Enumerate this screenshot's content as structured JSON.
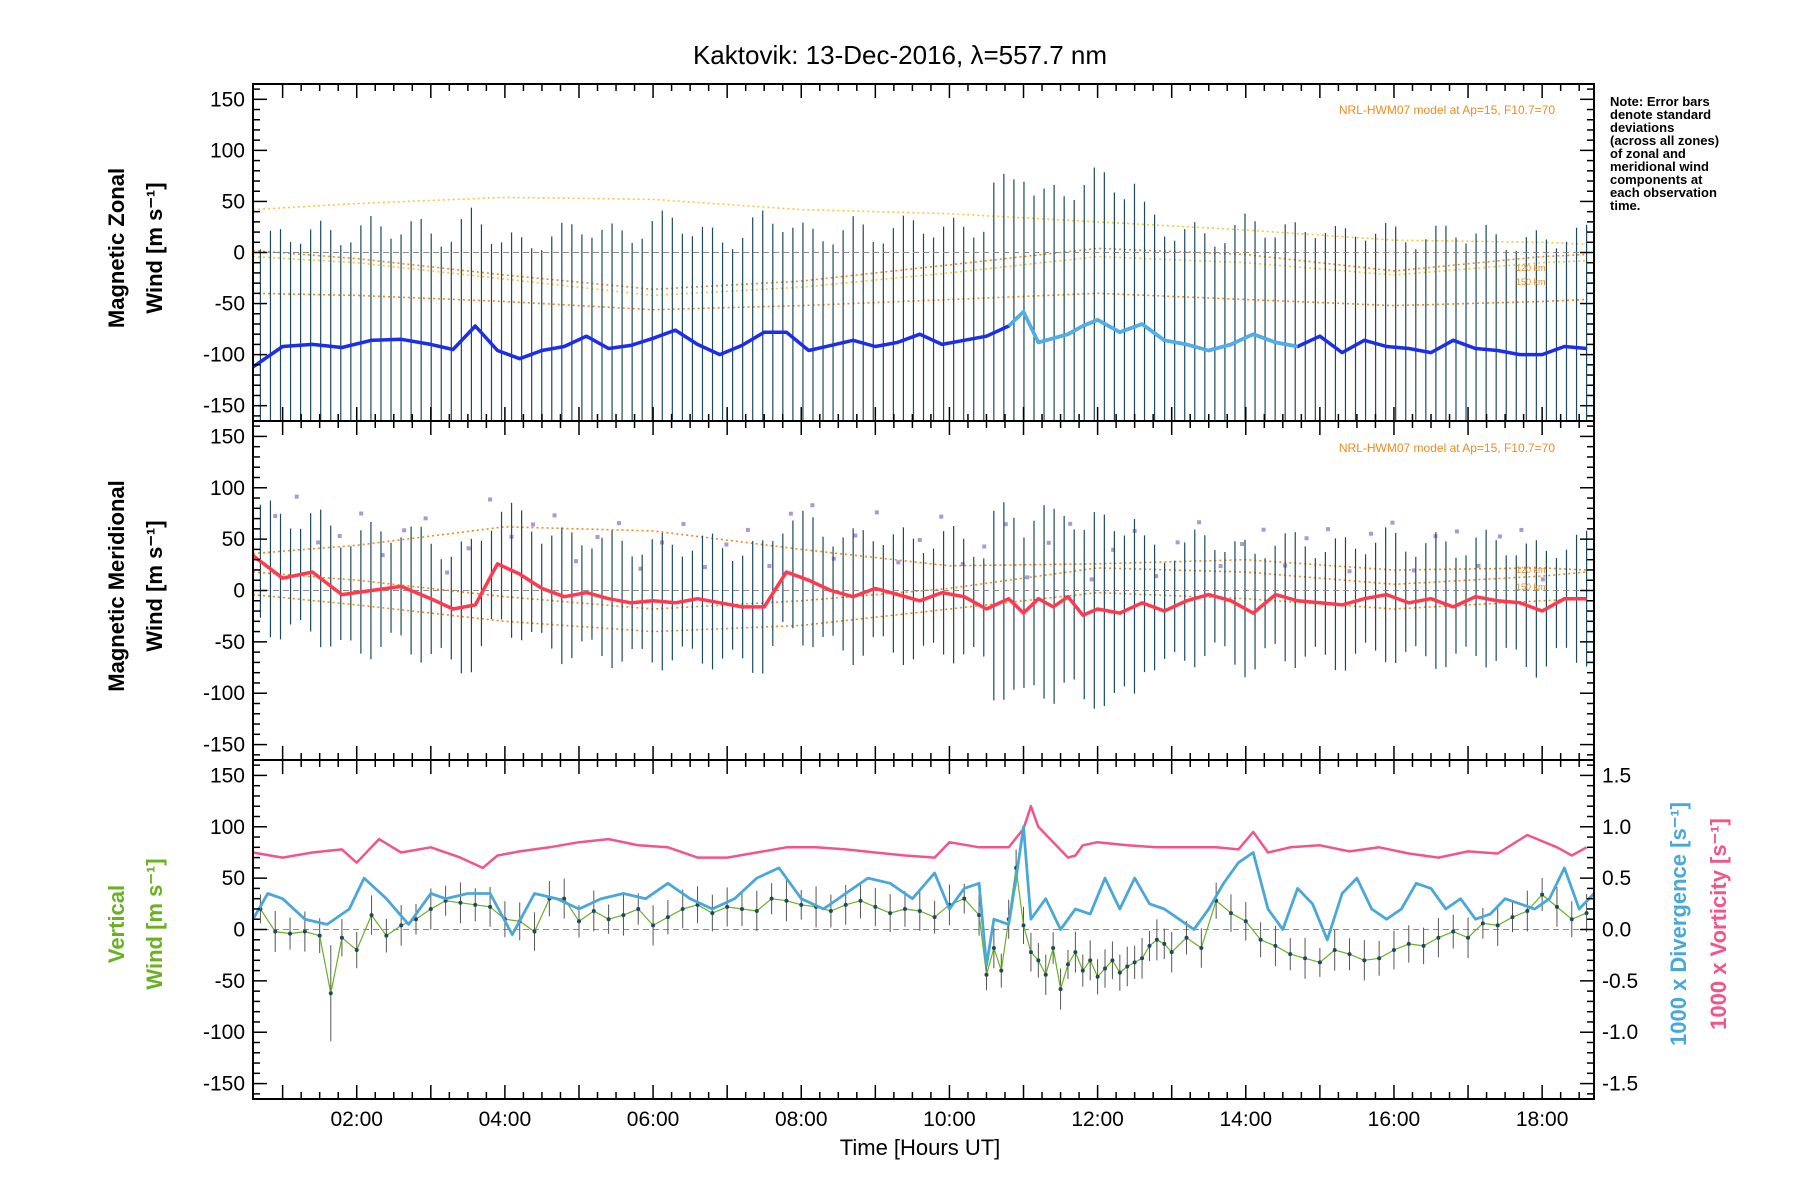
{
  "chart_data": [
    {
      "type": "line",
      "panel": "zonal",
      "title": "Kaktovik: 13-Dec-2016, λ=557.7 nm",
      "ylabel_line1": "Magnetic Zonal",
      "ylabel_line2": "Wind [m s⁻¹]",
      "ylim": [
        -165,
        165
      ],
      "yticks": [
        150,
        100,
        50,
        0,
        -50,
        -100,
        -150
      ],
      "xlim": [
        0.6,
        18.7
      ],
      "model_note": "NRL-HWM07 model at Ap=15, F10.7=70",
      "alt_labels": [
        "120 km",
        "150 km"
      ],
      "colors": {
        "mean": "#1c2ee8",
        "mean_alt": "#4fb0e8",
        "errorbar": "#1d4a60",
        "model": "#f28a1c",
        "model2": "#f7c93a"
      },
      "mean_wind": {
        "x": [
          0.6,
          1.0,
          1.4,
          1.8,
          2.2,
          2.6,
          3.0,
          3.3,
          3.6,
          3.9,
          4.2,
          4.5,
          4.8,
          5.1,
          5.4,
          5.7,
          6.0,
          6.3,
          6.6,
          6.9,
          7.2,
          7.5,
          7.8,
          8.1,
          8.4,
          8.7,
          9.0,
          9.3,
          9.6,
          9.9,
          10.2,
          10.5,
          10.8,
          11.0,
          11.2,
          11.4,
          11.6,
          11.8,
          12.0,
          12.3,
          12.6,
          12.9,
          13.2,
          13.5,
          13.8,
          14.1,
          14.4,
          14.7,
          15.0,
          15.3,
          15.6,
          15.9,
          16.2,
          16.5,
          16.8,
          17.1,
          17.4,
          17.7,
          18.0,
          18.3,
          18.6
        ],
        "y": [
          -112,
          -92,
          -90,
          -93,
          -86,
          -85,
          -90,
          -95,
          -72,
          -96,
          -104,
          -96,
          -92,
          -82,
          -94,
          -91,
          -84,
          -76,
          -90,
          -100,
          -91,
          -78,
          -78,
          -96,
          -91,
          -86,
          -92,
          -88,
          -80,
          -90,
          -86,
          -82,
          -72,
          -58,
          -88,
          -84,
          -80,
          -72,
          -66,
          -78,
          -70,
          -86,
          -90,
          -96,
          -90,
          -80,
          -88,
          -92,
          -82,
          -98,
          -86,
          -92,
          -94,
          -98,
          -86,
          -94,
          -96,
          -100,
          -100,
          -92,
          -94
        ]
      },
      "model_lines": [
        {
          "name": "120 km",
          "x": [
            0.6,
            2,
            4,
            6,
            8,
            10,
            12,
            14,
            16,
            18,
            18.6
          ],
          "y": [
            42,
            48,
            54,
            52,
            42,
            38,
            30,
            22,
            12,
            10,
            8
          ]
        },
        {
          "name": "120 km",
          "x": [
            0.6,
            2,
            4,
            6,
            8,
            10,
            12,
            14,
            16,
            18,
            18.6
          ],
          "y": [
            2,
            -6,
            -22,
            -36,
            -28,
            -12,
            4,
            -2,
            -18,
            -4,
            -2
          ]
        },
        {
          "name": "150 km",
          "x": [
            0.6,
            2,
            4,
            6,
            8,
            10,
            12,
            14,
            16,
            18,
            18.6
          ],
          "y": [
            -4,
            -10,
            -26,
            -42,
            -34,
            -20,
            -4,
            -10,
            -22,
            -10,
            -8
          ]
        },
        {
          "name": "150 km",
          "x": [
            0.6,
            2,
            4,
            6,
            8,
            10,
            12,
            14,
            16,
            18,
            18.6
          ],
          "y": [
            -40,
            -42,
            -48,
            -56,
            -52,
            -46,
            -40,
            -46,
            -52,
            -48,
            -46
          ]
        }
      ]
    },
    {
      "type": "line",
      "panel": "meridional",
      "ylabel_line1": "Magnetic Meridional",
      "ylabel_line2": "Wind [m s⁻¹]",
      "ylim": [
        -165,
        165
      ],
      "yticks": [
        150,
        100,
        50,
        0,
        -50,
        -100,
        -150
      ],
      "xlim": [
        0.6,
        18.7
      ],
      "model_note": "NRL-HWM07 model at Ap=15, F10.7=70",
      "alt_labels": [
        "120 km",
        "150 km"
      ],
      "colors": {
        "mean": "#ff3a4e",
        "errorbar": "#1d4a60",
        "model": "#f28a1c",
        "scatter": "#a89ad6"
      },
      "mean_wind": {
        "x": [
          0.6,
          1.0,
          1.4,
          1.8,
          2.2,
          2.6,
          3.0,
          3.3,
          3.6,
          3.9,
          4.2,
          4.5,
          4.8,
          5.1,
          5.4,
          5.7,
          6.0,
          6.3,
          6.6,
          6.9,
          7.2,
          7.5,
          7.8,
          8.1,
          8.4,
          8.7,
          9.0,
          9.3,
          9.6,
          9.9,
          10.2,
          10.5,
          10.8,
          11.0,
          11.2,
          11.4,
          11.6,
          11.8,
          12.0,
          12.3,
          12.6,
          12.9,
          13.2,
          13.5,
          13.8,
          14.1,
          14.4,
          14.7,
          15.0,
          15.3,
          15.6,
          15.9,
          16.2,
          16.5,
          16.8,
          17.1,
          17.4,
          17.7,
          18.0,
          18.3,
          18.6
        ],
        "y": [
          34,
          12,
          18,
          -4,
          0,
          4,
          -8,
          -18,
          -14,
          26,
          16,
          2,
          -6,
          -2,
          -8,
          -12,
          -10,
          -12,
          -8,
          -12,
          -16,
          -16,
          18,
          10,
          0,
          -6,
          2,
          -4,
          -10,
          -2,
          -6,
          -18,
          -8,
          -22,
          -8,
          -16,
          -6,
          -24,
          -18,
          -22,
          -12,
          -20,
          -10,
          -4,
          -10,
          -22,
          -4,
          -10,
          -12,
          -14,
          -8,
          -4,
          -12,
          -8,
          -16,
          -6,
          -10,
          -12,
          -20,
          -8,
          -8
        ]
      },
      "model_lines": [
        {
          "name": "120 km",
          "x": [
            0.6,
            2,
            4,
            6,
            8,
            10,
            12,
            14,
            16,
            18,
            18.6
          ],
          "y": [
            36,
            44,
            62,
            58,
            40,
            24,
            26,
            30,
            20,
            22,
            20
          ]
        },
        {
          "name": "120 km",
          "x": [
            0.6,
            2,
            4,
            6,
            8,
            10,
            12,
            14,
            16,
            18,
            18.6
          ],
          "y": [
            18,
            10,
            -6,
            -18,
            -10,
            2,
            22,
            18,
            6,
            14,
            18
          ]
        },
        {
          "name": "150 km",
          "x": [
            0.6,
            2,
            4,
            6,
            8,
            10,
            12,
            14,
            16,
            18,
            18.6
          ],
          "y": [
            -4,
            -14,
            -30,
            -40,
            -34,
            -18,
            -2,
            -8,
            -18,
            -10,
            -8
          ]
        }
      ]
    },
    {
      "type": "line",
      "panel": "vertical",
      "ylabel_line1": "Vertical",
      "ylabel_line2": "Wind [m s⁻¹]",
      "ylim": [
        -165,
        165
      ],
      "yticks": [
        150,
        100,
        50,
        0,
        -50,
        -100,
        -150
      ],
      "y2lim": [
        -1.65,
        1.65
      ],
      "y2ticks": [
        "1.5",
        "1.0",
        "0.5",
        "0.0",
        "-0.5",
        "-1.0",
        "-1.5"
      ],
      "y2label_divergence": "1000 x Divergence [s⁻¹]",
      "y2label_vorticity": "1000 x Vorticity [s⁻¹]",
      "xlim": [
        0.6,
        18.7
      ],
      "xticks": [
        "02:00",
        "04:00",
        "06:00",
        "08:00",
        "10:00",
        "12:00",
        "14:00",
        "16:00",
        "18:00"
      ],
      "xlabel": "Time [Hours UT]",
      "colors": {
        "vertical": "#6ab023",
        "divergence": "#4aa8d8",
        "vorticity": "#f2558a",
        "errorbar": "#555555"
      },
      "vertical_wind": {
        "x": [
          0.7,
          0.9,
          1.1,
          1.3,
          1.5,
          1.65,
          1.8,
          2.0,
          2.2,
          2.4,
          2.6,
          2.8,
          3.0,
          3.2,
          3.4,
          3.6,
          3.8,
          4.0,
          4.2,
          4.4,
          4.6,
          4.8,
          5.0,
          5.2,
          5.4,
          5.6,
          5.8,
          6.0,
          6.2,
          6.4,
          6.6,
          6.8,
          7.0,
          7.2,
          7.4,
          7.6,
          7.8,
          8.0,
          8.2,
          8.4,
          8.6,
          8.8,
          9.0,
          9.2,
          9.4,
          9.6,
          9.8,
          10.0,
          10.2,
          10.4,
          10.5,
          10.6,
          10.7,
          10.8,
          10.9,
          11.0,
          11.1,
          11.2,
          11.3,
          11.4,
          11.5,
          11.6,
          11.7,
          11.8,
          11.9,
          12.0,
          12.1,
          12.2,
          12.3,
          12.4,
          12.5,
          12.6,
          12.7,
          12.8,
          12.9,
          13.0,
          13.2,
          13.4,
          13.6,
          13.8,
          14.0,
          14.2,
          14.4,
          14.6,
          14.8,
          15.0,
          15.2,
          15.4,
          15.6,
          15.8,
          16.0,
          16.2,
          16.4,
          16.6,
          16.8,
          17.0,
          17.2,
          17.4,
          17.6,
          17.8,
          18.0,
          18.2,
          18.4,
          18.6
        ],
        "y": [
          20,
          -2,
          -4,
          -2,
          -6,
          -62,
          -8,
          -20,
          14,
          -6,
          4,
          10,
          20,
          28,
          26,
          24,
          22,
          10,
          8,
          -2,
          30,
          30,
          8,
          18,
          10,
          14,
          20,
          4,
          12,
          20,
          24,
          16,
          22,
          20,
          18,
          30,
          28,
          24,
          22,
          18,
          24,
          28,
          22,
          16,
          20,
          18,
          12,
          24,
          30,
          14,
          -44,
          -18,
          -40,
          10,
          60,
          4,
          -22,
          -30,
          -44,
          -18,
          -58,
          -34,
          -22,
          -40,
          -30,
          -46,
          -38,
          -30,
          -42,
          -36,
          -32,
          -28,
          -16,
          -10,
          -14,
          -22,
          -8,
          -18,
          28,
          16,
          8,
          -10,
          -16,
          -24,
          -28,
          -32,
          -20,
          -24,
          -30,
          -28,
          -20,
          -14,
          -16,
          -8,
          -2,
          -8,
          6,
          4,
          12,
          18,
          34,
          22,
          10,
          16
        ]
      },
      "divergence": {
        "x": [
          0.6,
          0.8,
          1.0,
          1.3,
          1.6,
          1.9,
          2.1,
          2.4,
          2.7,
          3.0,
          3.2,
          3.5,
          3.8,
          4.1,
          4.4,
          4.7,
          5.0,
          5.3,
          5.6,
          5.9,
          6.2,
          6.5,
          6.8,
          7.1,
          7.4,
          7.7,
          8.0,
          8.3,
          8.6,
          8.9,
          9.2,
          9.5,
          9.8,
          10.0,
          10.2,
          10.4,
          10.5,
          10.6,
          10.8,
          10.9,
          11.0,
          11.1,
          11.3,
          11.5,
          11.7,
          11.9,
          12.1,
          12.3,
          12.5,
          12.7,
          12.9,
          13.1,
          13.3,
          13.5,
          13.7,
          13.9,
          14.1,
          14.3,
          14.5,
          14.7,
          14.9,
          15.1,
          15.3,
          15.5,
          15.7,
          15.9,
          16.1,
          16.3,
          16.5,
          16.7,
          16.9,
          17.1,
          17.3,
          17.5,
          17.7,
          17.9,
          18.1,
          18.3,
          18.5,
          18.7
        ],
        "y": [
          0.1,
          0.35,
          0.3,
          0.1,
          0.05,
          0.2,
          0.5,
          0.3,
          0.05,
          0.35,
          0.3,
          0.35,
          0.35,
          -0.05,
          0.35,
          0.3,
          0.2,
          0.3,
          0.35,
          0.3,
          0.45,
          0.3,
          0.2,
          0.3,
          0.5,
          0.6,
          0.3,
          0.2,
          0.35,
          0.5,
          0.45,
          0.3,
          0.55,
          0.2,
          0.4,
          0.45,
          -0.35,
          0.1,
          0.05,
          0.5,
          1.0,
          0.1,
          0.3,
          0.0,
          0.2,
          0.15,
          0.5,
          0.2,
          0.5,
          0.25,
          0.2,
          0.1,
          0.0,
          0.2,
          0.45,
          0.65,
          0.75,
          0.2,
          0.0,
          0.4,
          0.25,
          -0.1,
          0.35,
          0.5,
          0.2,
          0.1,
          0.2,
          0.45,
          0.4,
          0.2,
          0.3,
          0.1,
          0.15,
          0.3,
          0.25,
          0.2,
          0.3,
          0.6,
          0.2,
          0.35
        ]
      },
      "vorticity": {
        "x": [
          0.6,
          1.0,
          1.4,
          1.8,
          2.0,
          2.3,
          2.6,
          3.0,
          3.4,
          3.7,
          3.9,
          4.2,
          4.6,
          5.0,
          5.4,
          5.8,
          6.2,
          6.6,
          7.0,
          7.4,
          7.8,
          8.2,
          8.6,
          9.0,
          9.4,
          9.8,
          10.0,
          10.4,
          10.8,
          11.0,
          11.1,
          11.2,
          11.4,
          11.6,
          11.7,
          11.8,
          12.0,
          12.4,
          12.8,
          13.2,
          13.6,
          13.9,
          14.1,
          14.3,
          14.6,
          15.0,
          15.4,
          15.8,
          16.2,
          16.6,
          17.0,
          17.4,
          17.8,
          18.2,
          18.4,
          18.6
        ],
        "y": [
          0.75,
          0.7,
          0.75,
          0.78,
          0.65,
          0.88,
          0.75,
          0.8,
          0.7,
          0.6,
          0.72,
          0.76,
          0.8,
          0.85,
          0.88,
          0.82,
          0.8,
          0.7,
          0.7,
          0.75,
          0.8,
          0.8,
          0.78,
          0.75,
          0.72,
          0.7,
          0.85,
          0.8,
          0.8,
          0.98,
          1.2,
          1.0,
          0.85,
          0.7,
          0.72,
          0.82,
          0.85,
          0.82,
          0.8,
          0.8,
          0.8,
          0.78,
          0.95,
          0.75,
          0.8,
          0.82,
          0.76,
          0.8,
          0.74,
          0.7,
          0.76,
          0.74,
          0.92,
          0.8,
          0.72,
          0.8
        ]
      }
    }
  ],
  "side_note": [
    "Note: Error bars",
    "denote standard",
    "deviations",
    "(across all zones)",
    "of zonal and",
    "meridional wind",
    "components at",
    "each observation",
    "time."
  ]
}
